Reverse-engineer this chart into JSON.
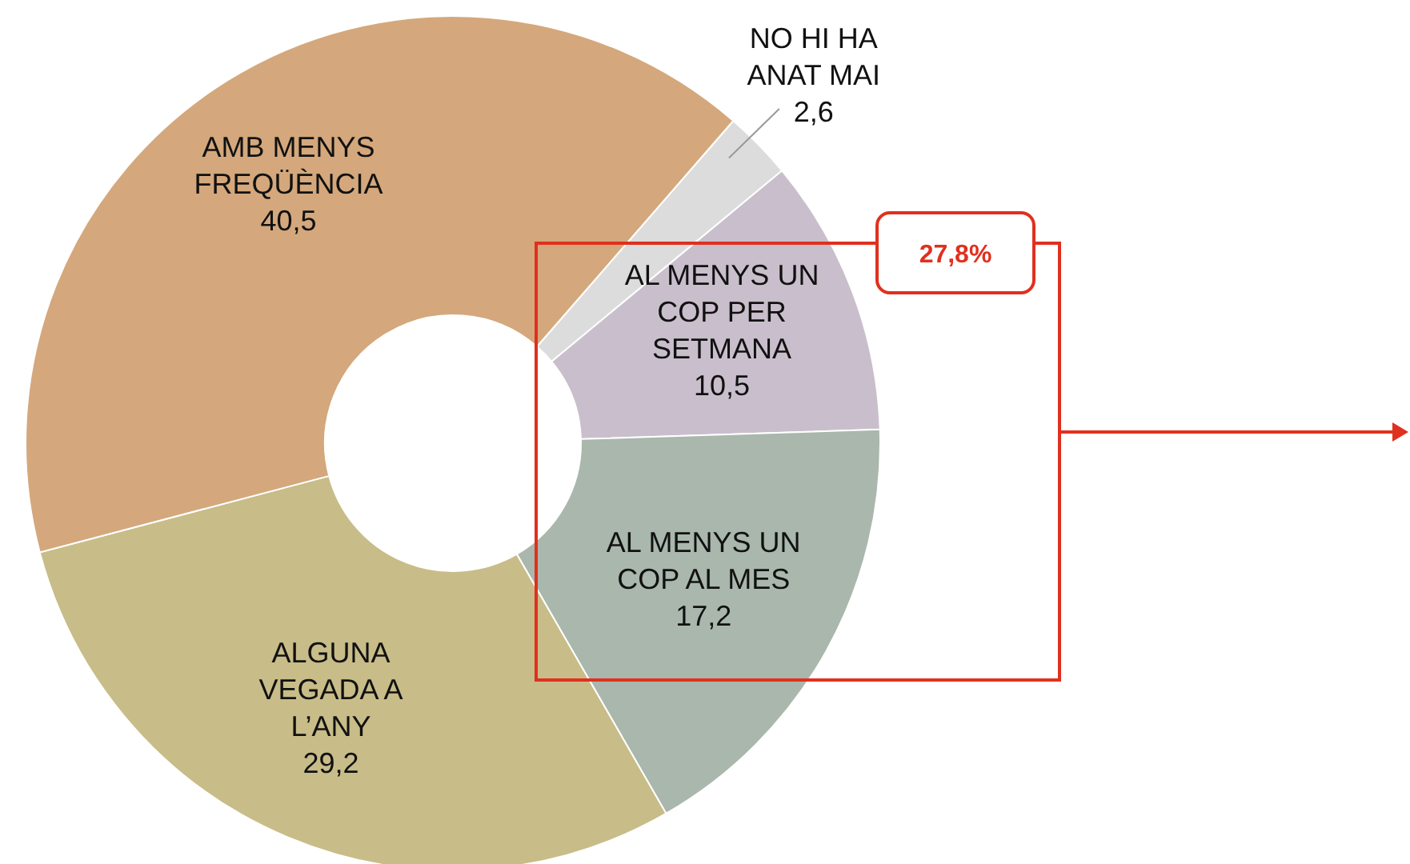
{
  "chart_data": {
    "type": "donut",
    "categories": [
      "NO HI HA ANAT MAI",
      "AL MENYS UN COP PER SETMANA",
      "AL MENYS UN COP AL MES",
      "ALGUNA VEGADA A L’ANY",
      "AMB MENYS FREQÜÈNCIA"
    ],
    "values": [
      2.6,
      10.5,
      17.2,
      29.2,
      40.5
    ],
    "colors": [
      "#dcdcdc",
      "#c9bfcc",
      "#a9b7ac",
      "#c8bc88",
      "#d4a87c"
    ],
    "value_labels": [
      "2,6",
      "10,5",
      "17,2",
      "29,2",
      "40,5"
    ],
    "annotations": [
      "27,8%"
    ]
  }
}
